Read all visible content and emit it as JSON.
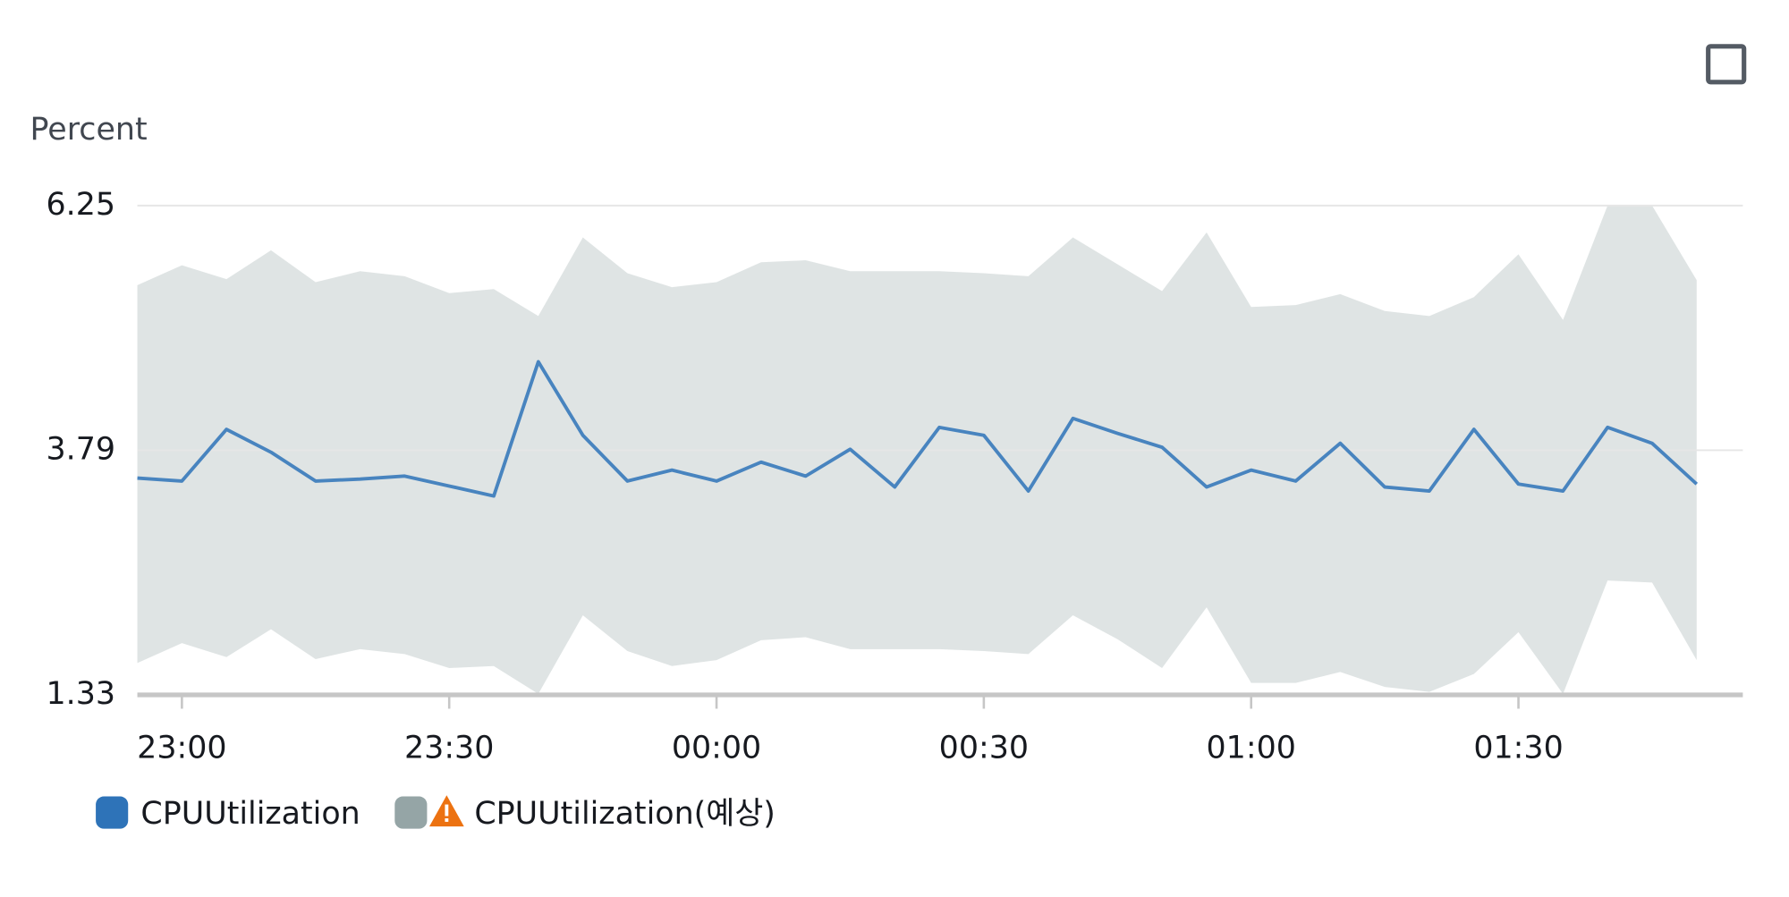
{
  "chart_data": {
    "type": "line",
    "y_label": "Percent",
    "categories": [
      null,
      "23:00",
      null,
      null,
      null,
      null,
      null,
      "23:30",
      null,
      null,
      null,
      null,
      null,
      "00:00",
      null,
      null,
      null,
      null,
      null,
      "00:30",
      null,
      null,
      null,
      null,
      null,
      "01:00",
      null,
      null,
      null,
      null,
      null,
      "01:30",
      null,
      null,
      null,
      null
    ],
    "series": [
      {
        "name": "CPUUtilization",
        "color": "#2e73b8",
        "values": [
          3.51,
          3.48,
          4.0,
          3.77,
          3.48,
          3.5,
          3.53,
          3.43,
          3.33,
          4.68,
          3.94,
          3.48,
          3.59,
          3.48,
          3.67,
          3.53,
          3.8,
          3.42,
          4.02,
          3.94,
          3.38,
          4.11,
          3.96,
          3.82,
          3.42,
          3.59,
          3.48,
          3.86,
          3.42,
          3.38,
          4.0,
          3.45,
          3.38,
          4.02,
          3.86,
          3.45
        ]
      }
    ],
    "band": {
      "name": "CPUUtilization(예상)",
      "color": "#95a5a6",
      "upper": [
        5.45,
        5.65,
        5.51,
        5.8,
        5.48,
        5.59,
        5.54,
        5.37,
        5.41,
        5.14,
        5.93,
        5.57,
        5.43,
        5.48,
        5.68,
        5.7,
        5.59,
        5.59,
        5.59,
        5.57,
        5.54,
        5.93,
        5.66,
        5.39,
        5.98,
        5.23,
        5.25,
        5.36,
        5.19,
        5.14,
        5.33,
        5.76,
        5.1,
        6.25,
        6.25,
        5.5
      ],
      "lower": [
        1.65,
        1.85,
        1.71,
        1.99,
        1.69,
        1.79,
        1.74,
        1.6,
        1.62,
        1.34,
        2.13,
        1.77,
        1.62,
        1.68,
        1.88,
        1.91,
        1.79,
        1.79,
        1.79,
        1.77,
        1.74,
        2.13,
        1.89,
        1.6,
        2.21,
        1.45,
        1.45,
        1.56,
        1.41,
        1.36,
        1.54,
        1.96,
        1.34,
        2.48,
        2.46,
        1.68
      ]
    },
    "ylim": [
      1.33,
      6.25
    ],
    "yticks": [
      1.33,
      3.79,
      6.25
    ],
    "grid": true
  }
}
